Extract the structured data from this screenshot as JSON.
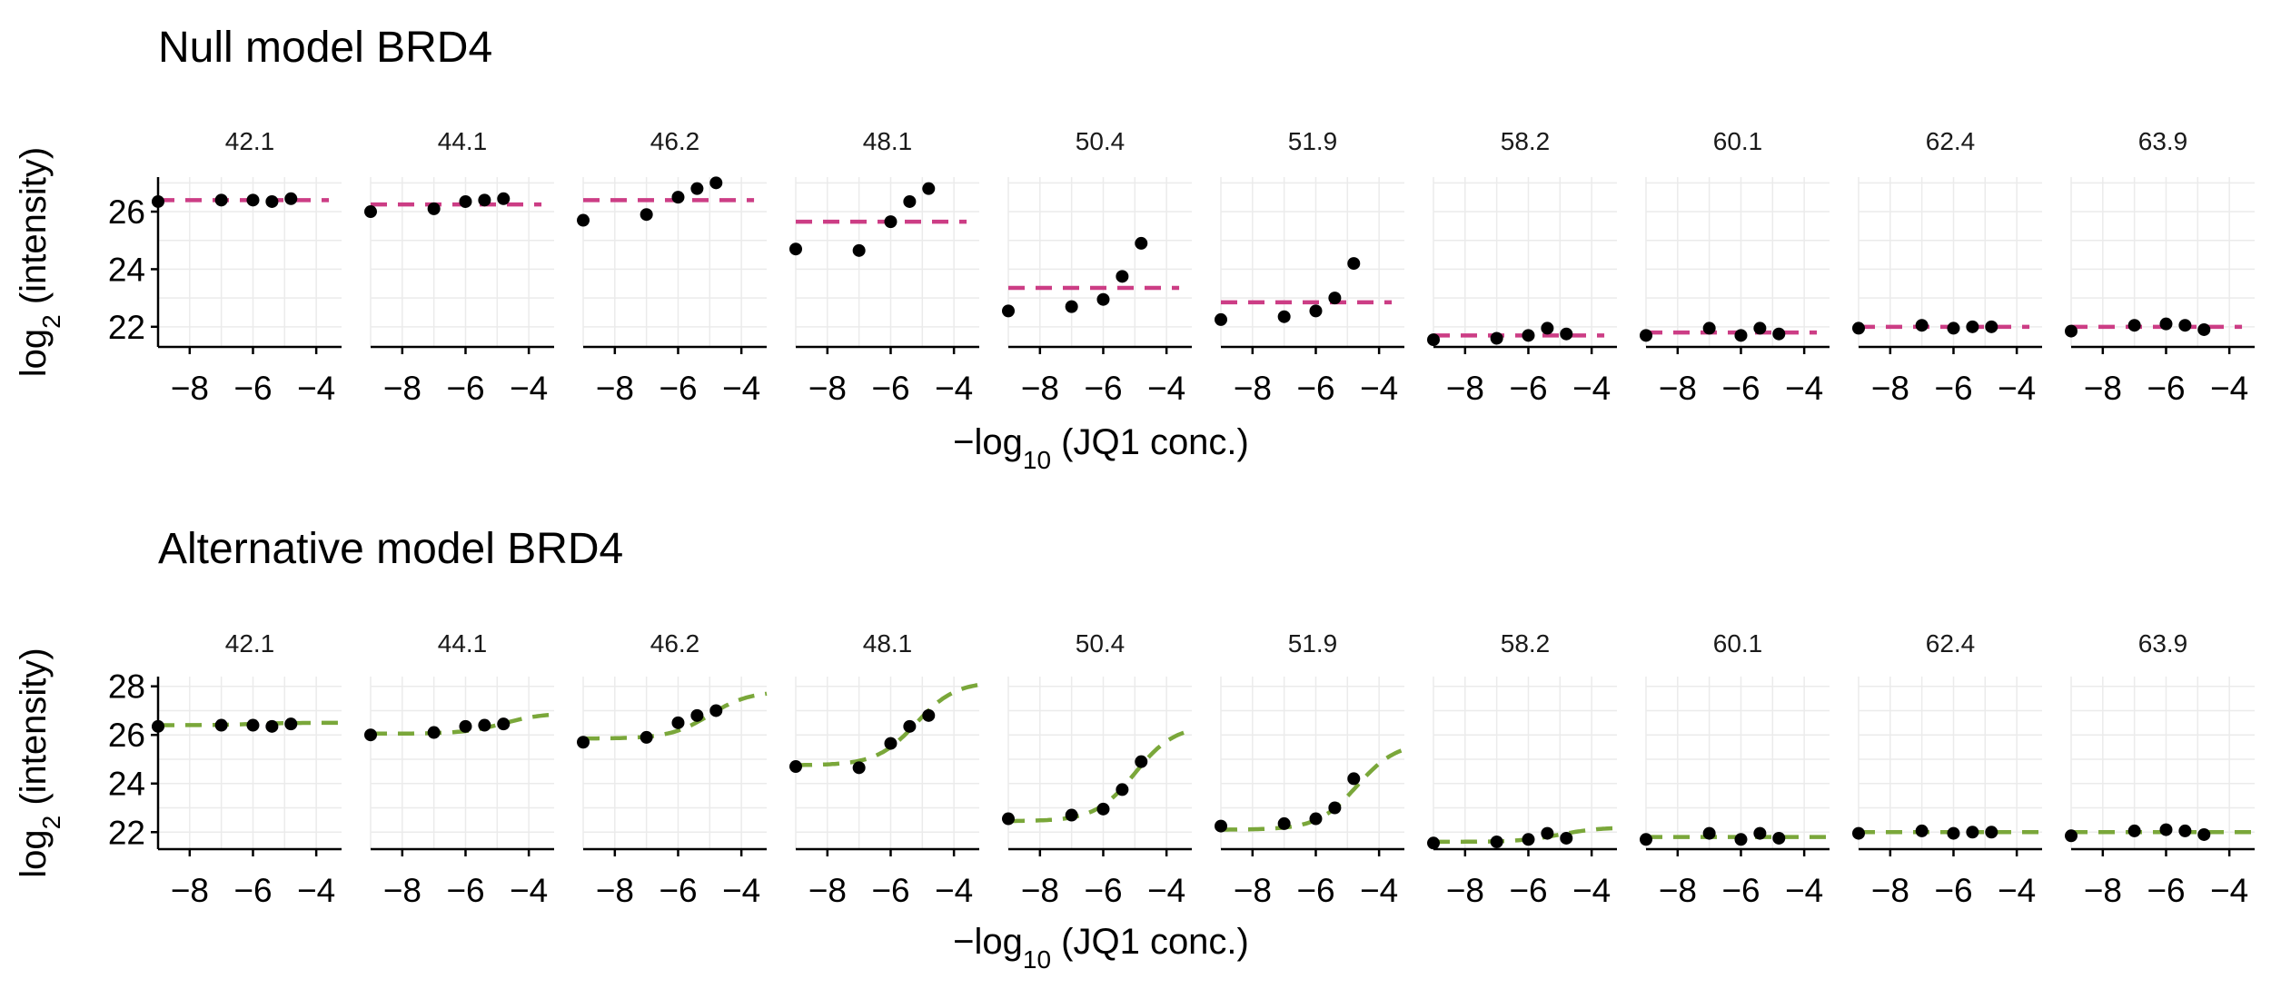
{
  "colors": {
    "null_fit": "#cc3d85",
    "alt_fit": "#7aa73a",
    "points": "#000000",
    "grid": "#ebebeb"
  },
  "chart_data": [
    {
      "type": "scatter",
      "title": "Null model BRD4",
      "xlabel_prefix": "−log",
      "xlabel_sub": "10",
      "xlabel_suffix": " (JQ1 conc.)",
      "ylabel_prefix": "log",
      "ylabel_sub": "2",
      "ylabel_suffix": " (intensity)",
      "xlim": [
        -9,
        -3.2
      ],
      "ylim": [
        21.3,
        27.2
      ],
      "xticks": [
        -8,
        -6,
        -4
      ],
      "xtick_labels": [
        "−8",
        "−6",
        "−4"
      ],
      "yticks": [
        22,
        24,
        26
      ],
      "ytick_labels": [
        "22",
        "24",
        "26"
      ],
      "fit_style": "dashed",
      "fit_color_key": "null_fit",
      "fit_x_range": [
        -9,
        -3.6
      ],
      "panels": [
        {
          "label": "42.1",
          "x": [
            -9,
            -7,
            -6,
            -5.4,
            -4.8
          ],
          "y": [
            26.35,
            26.4,
            26.4,
            26.35,
            26.45
          ],
          "fit": [
            26.4,
            26.4
          ]
        },
        {
          "label": "44.1",
          "x": [
            -9,
            -7,
            -6,
            -5.4,
            -4.8
          ],
          "y": [
            26.0,
            26.1,
            26.35,
            26.4,
            26.45
          ],
          "fit": [
            26.25,
            26.25
          ]
        },
        {
          "label": "46.2",
          "x": [
            -9,
            -7,
            -6,
            -5.4,
            -4.8
          ],
          "y": [
            25.7,
            25.9,
            26.5,
            26.8,
            27.0
          ],
          "fit": [
            26.4,
            26.4
          ]
        },
        {
          "label": "48.1",
          "x": [
            -9,
            -7,
            -6,
            -5.4,
            -4.8
          ],
          "y": [
            24.7,
            24.65,
            25.65,
            26.35,
            26.8
          ],
          "fit": [
            25.65,
            25.65
          ]
        },
        {
          "label": "50.4",
          "x": [
            -9,
            -7,
            -6,
            -5.4,
            -4.8
          ],
          "y": [
            22.55,
            22.7,
            22.95,
            23.75,
            24.9
          ],
          "fit": [
            23.35,
            23.35
          ]
        },
        {
          "label": "51.9",
          "x": [
            -9,
            -7,
            -6,
            -5.4,
            -4.8
          ],
          "y": [
            22.25,
            22.35,
            22.55,
            23.0,
            24.2
          ],
          "fit": [
            22.85,
            22.85
          ]
        },
        {
          "label": "58.2",
          "x": [
            -9,
            -7,
            -6,
            -5.4,
            -4.8
          ],
          "y": [
            21.55,
            21.6,
            21.7,
            21.95,
            21.75
          ],
          "fit": [
            21.7,
            21.7
          ]
        },
        {
          "label": "60.1",
          "x": [
            -9,
            -7,
            -6,
            -5.4,
            -4.8
          ],
          "y": [
            21.7,
            21.95,
            21.7,
            21.95,
            21.75
          ],
          "fit": [
            21.8,
            21.8
          ]
        },
        {
          "label": "62.4",
          "x": [
            -9,
            -7,
            -6,
            -5.4,
            -4.8
          ],
          "y": [
            21.95,
            22.05,
            21.95,
            22.0,
            22.0
          ],
          "fit": [
            22.0,
            22.0
          ]
        },
        {
          "label": "63.9",
          "x": [
            -9,
            -7,
            -6,
            -5.4,
            -4.8
          ],
          "y": [
            21.85,
            22.05,
            22.1,
            22.05,
            21.9
          ],
          "fit": [
            22.0,
            22.0
          ]
        }
      ]
    },
    {
      "type": "scatter",
      "title": "Alternative model BRD4",
      "xlabel_prefix": "−log",
      "xlabel_sub": "10",
      "xlabel_suffix": " (JQ1 conc.)",
      "ylabel_prefix": "log",
      "ylabel_sub": "2",
      "ylabel_suffix": " (intensity)",
      "xlim": [
        -9,
        -3.2
      ],
      "ylim": [
        21.3,
        28.4
      ],
      "xticks": [
        -8,
        -6,
        -4
      ],
      "xtick_labels": [
        "−8",
        "−6",
        "−4"
      ],
      "yticks": [
        22,
        24,
        26,
        28
      ],
      "ytick_labels": [
        "22",
        "24",
        "26",
        "28"
      ],
      "fit_style": "dashed",
      "fit_color_key": "alt_fit",
      "fit_x_range": [
        -9,
        -3.2
      ],
      "panels": [
        {
          "label": "42.1",
          "x": [
            -9,
            -7,
            -6,
            -5.4,
            -4.8
          ],
          "y": [
            26.35,
            26.4,
            26.4,
            26.35,
            26.45
          ],
          "fit_bottom": 26.4,
          "fit_top": 26.5,
          "fit_ec50": -6
        },
        {
          "label": "44.1",
          "x": [
            -9,
            -7,
            -6,
            -5.4,
            -4.8
          ],
          "y": [
            26.0,
            26.1,
            26.35,
            26.4,
            26.45
          ],
          "fit_bottom": 26.05,
          "fit_top": 26.9,
          "fit_ec50": -4.8
        },
        {
          "label": "46.2",
          "x": [
            -9,
            -7,
            -6,
            -5.4,
            -4.8
          ],
          "y": [
            25.7,
            25.9,
            26.5,
            26.8,
            27.0
          ],
          "fit_bottom": 25.85,
          "fit_top": 27.8,
          "fit_ec50": -5.0
        },
        {
          "label": "48.1",
          "x": [
            -9,
            -7,
            -6,
            -5.4,
            -4.8
          ],
          "y": [
            24.7,
            24.65,
            25.65,
            26.35,
            26.8
          ],
          "fit_bottom": 24.75,
          "fit_top": 28.2,
          "fit_ec50": -5.2
        },
        {
          "label": "50.4",
          "x": [
            -9,
            -7,
            -6,
            -5.4,
            -4.8
          ],
          "y": [
            22.55,
            22.7,
            22.95,
            23.75,
            24.9
          ],
          "fit_bottom": 22.45,
          "fit_top": 26.4,
          "fit_ec50": -5.0
        },
        {
          "label": "51.9",
          "x": [
            -9,
            -7,
            -6,
            -5.4,
            -4.8
          ],
          "y": [
            22.25,
            22.35,
            22.55,
            23.0,
            24.2
          ],
          "fit_bottom": 22.1,
          "fit_top": 25.7,
          "fit_ec50": -4.7
        },
        {
          "label": "58.2",
          "x": [
            -9,
            -7,
            -6,
            -5.4,
            -4.8
          ],
          "y": [
            21.55,
            21.6,
            21.7,
            21.95,
            21.75
          ],
          "fit_bottom": 21.6,
          "fit_top": 22.2,
          "fit_ec50": -5.0
        },
        {
          "label": "60.1",
          "x": [
            -9,
            -7,
            -6,
            -5.4,
            -4.8
          ],
          "y": [
            21.7,
            21.95,
            21.7,
            21.95,
            21.75
          ],
          "fit_bottom": 21.8,
          "fit_top": 21.8,
          "fit_ec50": -6
        },
        {
          "label": "62.4",
          "x": [
            -9,
            -7,
            -6,
            -5.4,
            -4.8
          ],
          "y": [
            21.95,
            22.05,
            21.95,
            22.0,
            22.0
          ],
          "fit_bottom": 22.0,
          "fit_top": 22.0,
          "fit_ec50": -6
        },
        {
          "label": "63.9",
          "x": [
            -9,
            -7,
            -6,
            -5.4,
            -4.8
          ],
          "y": [
            21.85,
            22.05,
            22.1,
            22.05,
            21.9
          ],
          "fit_bottom": 22.0,
          "fit_top": 22.0,
          "fit_ec50": -6
        }
      ]
    }
  ]
}
